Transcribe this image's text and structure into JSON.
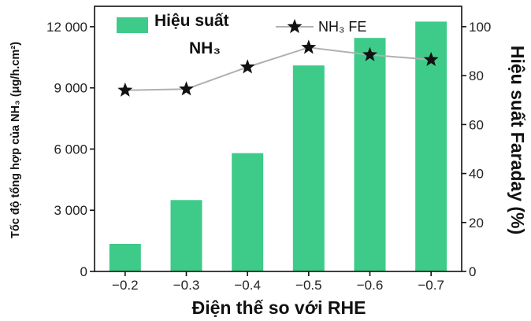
{
  "chart_data": {
    "type": "bar",
    "categories": [
      "−0.2",
      "−0.3",
      "−0.4",
      "−0.5",
      "−0.6",
      "−0.7"
    ],
    "series": [
      {
        "name_line1": "Hiệu suất",
        "name_line2": "NH₃",
        "type": "bar",
        "axis": "left",
        "color": "#3ecb8a",
        "values": [
          1350,
          3500,
          5800,
          10100,
          11450,
          12250
        ]
      },
      {
        "name": "NH₃ FE",
        "type": "line",
        "axis": "right",
        "color": "#111111",
        "line_color": "#b0b0b0",
        "marker": "star",
        "values": [
          74,
          74.5,
          83.5,
          91.5,
          88.5,
          86.5
        ]
      }
    ],
    "xlabel": "Điện thế so với RHE",
    "ylabel_left": "Tốc độ tổng hợp của NH₃ (μg/h.cm²)",
    "ylabel_right": "Hiệu suất Faraday (%)",
    "ylim_left": [
      0,
      13000
    ],
    "ylim_right": [
      0,
      108.33
    ],
    "yticks_left": [
      "0",
      "3 000",
      "6 000",
      "9 000",
      "12 000"
    ],
    "yticks_left_values": [
      0,
      3000,
      6000,
      9000,
      12000
    ],
    "yticks_right": [
      "0",
      "20",
      "40",
      "60",
      "80",
      "100"
    ],
    "yticks_right_values": [
      0,
      20,
      40,
      60,
      80,
      100
    ],
    "grid": false,
    "legend": "top"
  }
}
